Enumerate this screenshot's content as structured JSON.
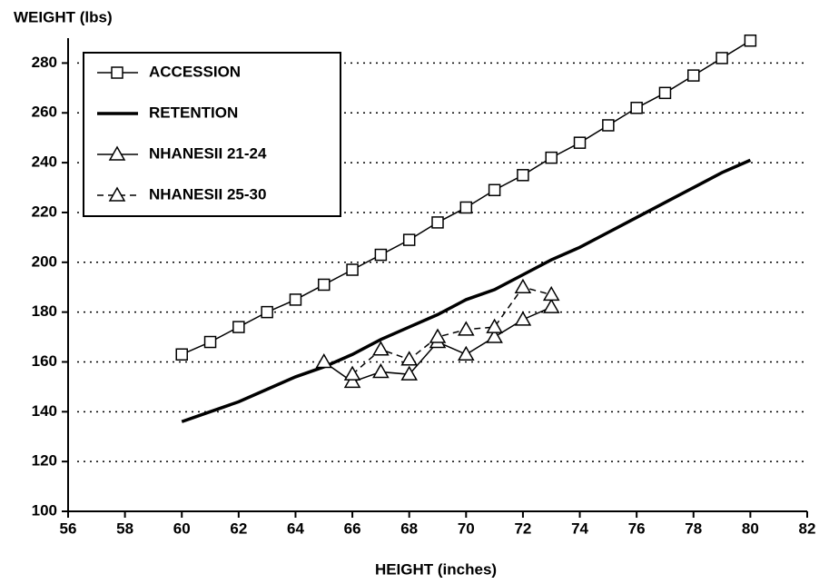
{
  "chart_data": {
    "type": "line",
    "y_axis_label": "WEIGHT (lbs)",
    "x_axis_label": "HEIGHT (inches)",
    "xlim": [
      56,
      82
    ],
    "xticks": [
      56,
      58,
      60,
      62,
      64,
      66,
      68,
      70,
      72,
      74,
      76,
      78,
      80,
      82
    ],
    "ylim": [
      100,
      290
    ],
    "yticks": [
      100,
      120,
      140,
      160,
      180,
      200,
      220,
      240,
      260,
      280
    ],
    "grid": true,
    "legend": "upper left",
    "series": [
      {
        "name": "ACCESSION",
        "color": "#000000",
        "marker": "square",
        "line_style": "solid",
        "line_width": 1.5,
        "x": [
          60,
          61,
          62,
          63,
          64,
          65,
          66,
          67,
          68,
          69,
          70,
          71,
          72,
          73,
          74,
          75,
          76,
          77,
          78,
          79,
          80
        ],
        "values": [
          163,
          168,
          174,
          180,
          185,
          191,
          197,
          203,
          209,
          216,
          222,
          229,
          235,
          242,
          248,
          255,
          262,
          268,
          275,
          282,
          289
        ]
      },
      {
        "name": "RETENTION",
        "color": "#000000",
        "marker": "none",
        "line_style": "solid",
        "line_width": 3.5,
        "x": [
          60,
          61,
          62,
          63,
          64,
          65,
          66,
          67,
          68,
          69,
          70,
          71,
          72,
          73,
          74,
          75,
          76,
          77,
          78,
          79,
          80
        ],
        "values": [
          136,
          140,
          144,
          149,
          154,
          158,
          163,
          169,
          174,
          179,
          185,
          189,
          195,
          201,
          206,
          212,
          218,
          224,
          230,
          236,
          241
        ]
      },
      {
        "name": "NHANESII 21-24",
        "color": "#000000",
        "marker": "triangle",
        "line_style": "solid",
        "line_width": 1.5,
        "x": [
          65,
          66,
          67,
          68,
          69,
          70,
          71,
          72,
          73
        ],
        "values": [
          160,
          152,
          156,
          155,
          168,
          163,
          170,
          177,
          182
        ]
      },
      {
        "name": "NHANESII 25-30",
        "color": "#000000",
        "marker": "triangle",
        "line_style": "dashed",
        "line_width": 1.5,
        "x": [
          66,
          67,
          68,
          69,
          70,
          71,
          72,
          73
        ],
        "values": [
          155,
          165,
          161,
          170,
          173,
          174,
          190,
          187
        ]
      }
    ]
  }
}
